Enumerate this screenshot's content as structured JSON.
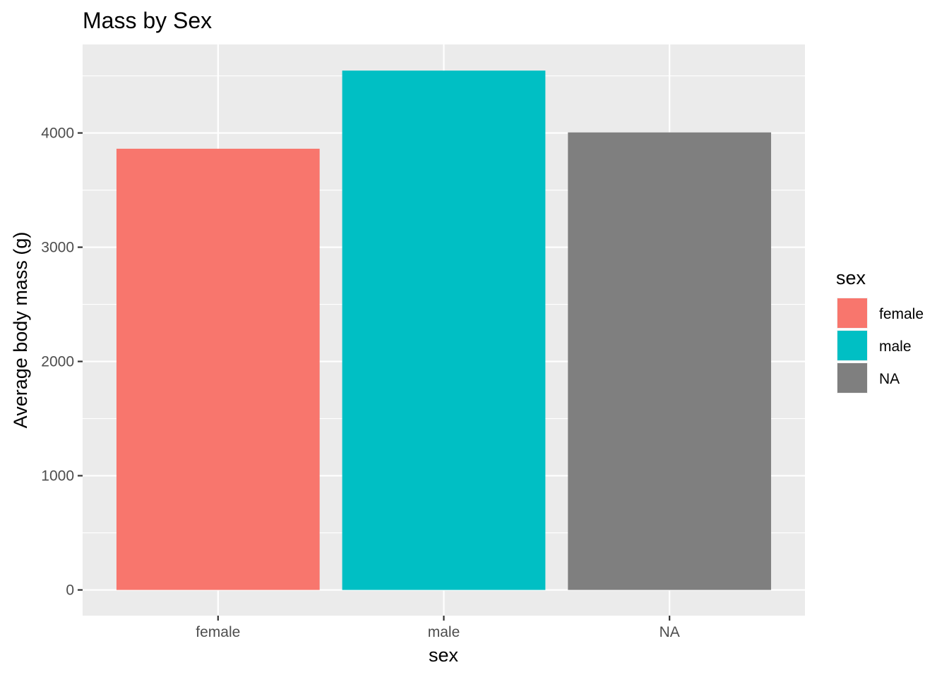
{
  "chart_data": {
    "type": "bar",
    "title": "Mass by Sex",
    "xlabel": "sex",
    "ylabel": "Average body mass (g)",
    "categories": [
      "female",
      "male",
      "NA"
    ],
    "values": [
      3862,
      4546,
      4005
    ],
    "colors": [
      "#f8766d",
      "#00bfc4",
      "#7f7f7f"
    ],
    "ylim": [
      -225,
      4775
    ],
    "yticks": [
      0,
      1000,
      2000,
      3000,
      4000
    ],
    "ytick_labels": [
      "0",
      "1000",
      "2000",
      "3000",
      "4000"
    ],
    "grid": true,
    "panel_background": "#ebebeb",
    "grid_color": "#ffffff",
    "legend": {
      "title": "sex",
      "position": "right",
      "entries": [
        "female",
        "male",
        "NA"
      ]
    }
  }
}
